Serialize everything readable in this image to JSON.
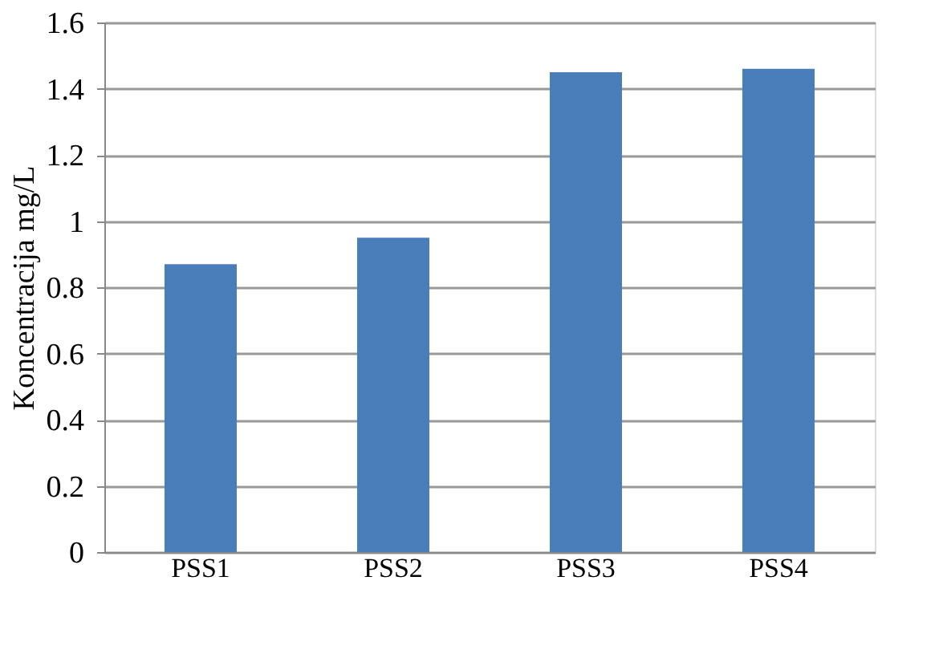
{
  "chart_data": {
    "type": "bar",
    "ylabel": "Koncentracija mg/L",
    "categories": [
      "PSS1",
      "PSS2",
      "PSS3",
      "PSS4"
    ],
    "values": [
      0.87,
      0.95,
      1.45,
      1.46
    ],
    "color": "#4a7ebb",
    "ylim": [
      0,
      1.6
    ],
    "yticks": [
      0,
      0.2,
      0.4,
      0.6,
      0.8,
      1,
      1.2,
      1.4,
      1.6
    ],
    "grid": "y"
  }
}
